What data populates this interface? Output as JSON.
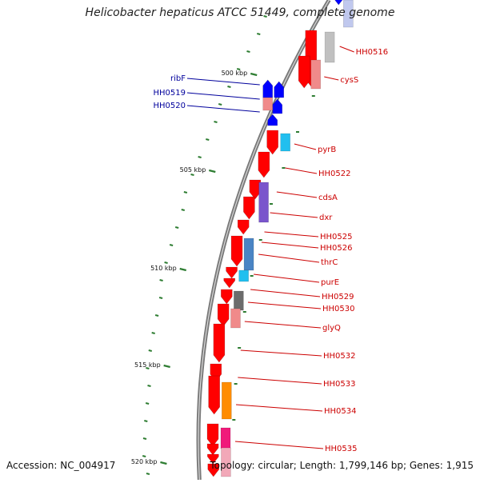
{
  "title": "Helicobacter hepaticus ATCC 51449, complete genome",
  "footer": {
    "accession": "Accession: NC_004917",
    "summary": "Topology: circular; Length: 1,799,146 bp; Genes: 1,915"
  },
  "colors": {
    "backbone": "#7a7a7a",
    "tick": "#2e7d32",
    "forward_label": "#cc0000",
    "reverse_label": "#00009c"
  },
  "ticks": [
    {
      "label": "500 kbp"
    },
    {
      "label": "505 kbp"
    },
    {
      "label": "510 kbp"
    },
    {
      "label": "515 kbp"
    },
    {
      "label": "520 kbp"
    }
  ],
  "reverse_labels": [
    {
      "text": "ribF"
    },
    {
      "text": "HH0519"
    },
    {
      "text": "HH0520"
    }
  ],
  "forward_labels": [
    {
      "text": "HH0516"
    },
    {
      "text": "cysS"
    },
    {
      "text": "pyrB"
    },
    {
      "text": "HH0522"
    },
    {
      "text": "cdsA"
    },
    {
      "text": "dxr"
    },
    {
      "text": "HH0525"
    },
    {
      "text": "HH0526"
    },
    {
      "text": "thrC"
    },
    {
      "text": "purE"
    },
    {
      "text": "HH0529"
    },
    {
      "text": "HH0530"
    },
    {
      "text": "glyQ"
    },
    {
      "text": "HH0532"
    },
    {
      "text": "HH0533"
    },
    {
      "text": "HH0534"
    },
    {
      "text": "HH0535"
    }
  ]
}
